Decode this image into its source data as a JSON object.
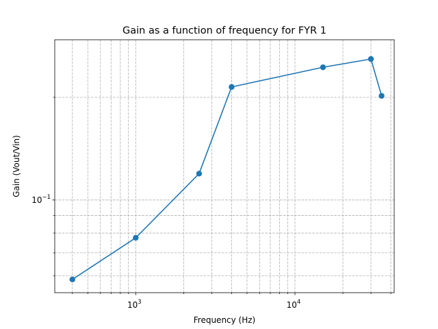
{
  "chart_data": {
    "type": "line",
    "title": "Gain as a function of frequency for FYR 1",
    "xlabel": "Frequency (Hz)",
    "ylabel": "Gain (Vout/Vin)",
    "xscale": "log",
    "yscale": "log",
    "xlim": [
      310,
      42000
    ],
    "ylim": [
      0.0535,
      0.295
    ],
    "x_major_ticks": [
      {
        "value": 1000,
        "base": "10",
        "exp": "3"
      },
      {
        "value": 10000,
        "base": "10",
        "exp": "4"
      }
    ],
    "y_major_ticks": [
      {
        "value": 0.1,
        "base": "10",
        "exp": "−1"
      }
    ],
    "grid": true,
    "grid_which": "both",
    "marker": "circle",
    "color": "#1f77b4",
    "series": [
      {
        "x": [
          400,
          1000,
          2500,
          4000,
          15000,
          30000,
          35000
        ],
        "y": [
          0.0585,
          0.0775,
          0.1195,
          0.2145,
          0.245,
          0.259,
          0.202
        ]
      }
    ]
  }
}
